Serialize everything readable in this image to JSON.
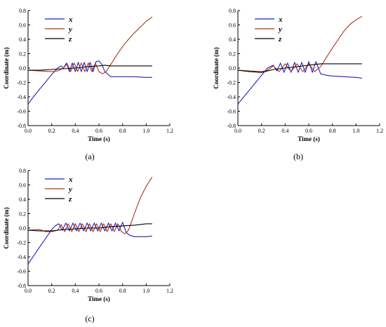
{
  "chart_data": [
    {
      "type": "line",
      "panel_label": "(a)",
      "xlabel": "Time (s)",
      "ylabel": "Coordinate (m)",
      "xlim": [
        0.0,
        1.2
      ],
      "ylim": [
        -0.8,
        0.8
      ],
      "xticks": [
        "0.0",
        "0.2",
        "0.4",
        "0.6",
        "0.8",
        "1.0",
        "1.2"
      ],
      "yticks": [
        "-0.8",
        "-0.6",
        "-0.4",
        "-0.2",
        "0.0",
        "0.2",
        "0.4",
        "0.6",
        "0.8"
      ],
      "grid": false,
      "legend": "top-left",
      "series": [
        {
          "name": "x",
          "color": "#2020c0",
          "x": [
            0,
            0.05,
            0.1,
            0.15,
            0.2,
            0.25,
            0.28,
            0.3,
            0.325,
            0.35,
            0.375,
            0.4,
            0.425,
            0.45,
            0.475,
            0.5,
            0.525,
            0.55,
            0.575,
            0.6,
            0.625,
            0.65,
            0.7,
            0.8,
            0.9,
            1.0,
            1.05
          ],
          "y": [
            -0.5,
            -0.39,
            -0.29,
            -0.19,
            -0.09,
            0.0,
            0.03,
            0.0,
            0.07,
            -0.05,
            0.07,
            -0.05,
            0.08,
            -0.05,
            0.08,
            -0.05,
            0.08,
            -0.05,
            0.09,
            0.1,
            0.05,
            -0.05,
            -0.12,
            -0.12,
            -0.12,
            -0.13,
            -0.13
          ]
        },
        {
          "name": "y",
          "color": "#b03020",
          "x": [
            0,
            0.1,
            0.2,
            0.25,
            0.3,
            0.33,
            0.36,
            0.39,
            0.42,
            0.45,
            0.48,
            0.51,
            0.54,
            0.57,
            0.6,
            0.63,
            0.66,
            0.7,
            0.75,
            0.8,
            0.85,
            0.9,
            0.95,
            1.0,
            1.05
          ],
          "y": [
            -0.03,
            -0.04,
            -0.05,
            -0.04,
            0.0,
            0.06,
            -0.05,
            0.07,
            -0.05,
            0.07,
            -0.05,
            0.07,
            -0.05,
            0.07,
            -0.05,
            -0.08,
            -0.05,
            0.05,
            0.18,
            0.3,
            0.4,
            0.49,
            0.57,
            0.65,
            0.71
          ]
        },
        {
          "name": "z",
          "color": "#000000",
          "x": [
            0,
            0.1,
            0.2,
            0.3,
            0.4,
            0.5,
            0.6,
            0.65,
            0.7,
            0.8,
            0.9,
            1.0,
            1.05
          ],
          "y": [
            -0.03,
            -0.03,
            -0.02,
            -0.01,
            0.0,
            0.02,
            0.03,
            0.04,
            0.03,
            0.03,
            0.03,
            0.03,
            0.03
          ]
        }
      ]
    },
    {
      "type": "line",
      "panel_label": "(b)",
      "xlabel": "Time (s)",
      "ylabel": "Coordinate (m)",
      "xlim": [
        0.0,
        1.2
      ],
      "ylim": [
        -0.8,
        0.8
      ],
      "xticks": [
        "0.0",
        "0.2",
        "0.4",
        "0.6",
        "0.8",
        "1.0",
        "1.2"
      ],
      "yticks": [
        "-0.8",
        "-0.6",
        "-0.4",
        "-0.2",
        "0.0",
        "0.2",
        "0.4",
        "0.6",
        "0.8"
      ],
      "grid": false,
      "legend": "top-left",
      "series": [
        {
          "name": "x",
          "color": "#2020c0",
          "x": [
            0,
            0.05,
            0.1,
            0.15,
            0.2,
            0.25,
            0.3,
            0.33,
            0.36,
            0.39,
            0.42,
            0.45,
            0.48,
            0.51,
            0.54,
            0.57,
            0.6,
            0.63,
            0.66,
            0.7,
            0.75,
            0.8,
            0.9,
            1.0,
            1.05
          ],
          "y": [
            -0.5,
            -0.4,
            -0.3,
            -0.2,
            -0.1,
            0.0,
            0.04,
            -0.04,
            0.07,
            -0.06,
            0.07,
            -0.06,
            0.08,
            -0.06,
            0.08,
            -0.06,
            0.09,
            -0.06,
            0.09,
            -0.08,
            -0.1,
            -0.11,
            -0.12,
            -0.13,
            -0.14
          ]
        },
        {
          "name": "y",
          "color": "#b03020",
          "x": [
            0,
            0.1,
            0.2,
            0.25,
            0.3,
            0.35,
            0.4,
            0.45,
            0.5,
            0.55,
            0.6,
            0.65,
            0.7,
            0.75,
            0.8,
            0.85,
            0.9,
            0.95,
            1.0,
            1.05
          ],
          "y": [
            -0.03,
            -0.04,
            -0.05,
            -0.03,
            0.03,
            -0.05,
            0.06,
            -0.05,
            0.06,
            -0.05,
            0.06,
            -0.05,
            0.02,
            0.15,
            0.28,
            0.4,
            0.52,
            0.61,
            0.67,
            0.72
          ]
        },
        {
          "name": "z",
          "color": "#000000",
          "x": [
            0,
            0.1,
            0.2,
            0.25,
            0.3,
            0.4,
            0.5,
            0.6,
            0.7,
            0.8,
            0.9,
            1.0,
            1.05
          ],
          "y": [
            -0.03,
            -0.05,
            -0.06,
            -0.04,
            -0.02,
            0.0,
            0.02,
            0.04,
            0.06,
            0.06,
            0.06,
            0.06,
            0.06
          ]
        }
      ]
    },
    {
      "type": "line",
      "panel_label": "(c)",
      "xlabel": "Time (s)",
      "ylabel": "Coordinate (m)",
      "xlim": [
        0.0,
        1.2
      ],
      "ylim": [
        -0.8,
        0.8
      ],
      "xticks": [
        "0.0",
        "0.2",
        "0.4",
        "0.6",
        "0.8",
        "1.0",
        "1.2"
      ],
      "yticks": [
        "-0.8",
        "-0.6",
        "-0.4",
        "-0.2",
        "0.0",
        "0.2",
        "0.4",
        "0.6",
        "0.8"
      ],
      "grid": false,
      "legend": "top-left",
      "series": [
        {
          "name": "x",
          "color": "#2020c0",
          "x": [
            0,
            0.05,
            0.1,
            0.15,
            0.2,
            0.23,
            0.26,
            0.29,
            0.32,
            0.35,
            0.38,
            0.41,
            0.44,
            0.47,
            0.5,
            0.53,
            0.56,
            0.59,
            0.62,
            0.65,
            0.68,
            0.71,
            0.74,
            0.77,
            0.8,
            0.83,
            0.86,
            0.9,
            1.0,
            1.05
          ],
          "y": [
            -0.5,
            -0.38,
            -0.26,
            -0.14,
            -0.02,
            0.03,
            0.06,
            -0.03,
            0.07,
            -0.04,
            0.07,
            -0.04,
            0.07,
            -0.04,
            0.07,
            -0.04,
            0.07,
            -0.04,
            0.07,
            -0.04,
            0.07,
            -0.04,
            0.07,
            -0.04,
            0.08,
            -0.06,
            -0.1,
            -0.12,
            -0.12,
            -0.11
          ]
        },
        {
          "name": "y",
          "color": "#b03020",
          "x": [
            0,
            0.1,
            0.15,
            0.2,
            0.25,
            0.28,
            0.31,
            0.34,
            0.37,
            0.4,
            0.43,
            0.46,
            0.49,
            0.52,
            0.55,
            0.58,
            0.61,
            0.64,
            0.67,
            0.7,
            0.73,
            0.76,
            0.79,
            0.82,
            0.85,
            0.9,
            0.95,
            1.0,
            1.05
          ],
          "y": [
            -0.03,
            -0.02,
            -0.05,
            -0.05,
            -0.03,
            0.05,
            -0.05,
            0.06,
            -0.05,
            0.06,
            -0.05,
            0.06,
            -0.05,
            0.06,
            -0.05,
            0.06,
            -0.05,
            0.06,
            -0.05,
            0.06,
            -0.05,
            0.06,
            -0.05,
            -0.08,
            -0.03,
            0.2,
            0.42,
            0.58,
            0.71
          ]
        },
        {
          "name": "z",
          "color": "#000000",
          "x": [
            0,
            0.1,
            0.2,
            0.3,
            0.4,
            0.5,
            0.6,
            0.7,
            0.8,
            0.9,
            1.0,
            1.05
          ],
          "y": [
            -0.03,
            -0.04,
            -0.04,
            -0.02,
            -0.01,
            0.0,
            0.0,
            0.02,
            0.03,
            0.04,
            0.06,
            0.06
          ]
        }
      ]
    }
  ]
}
